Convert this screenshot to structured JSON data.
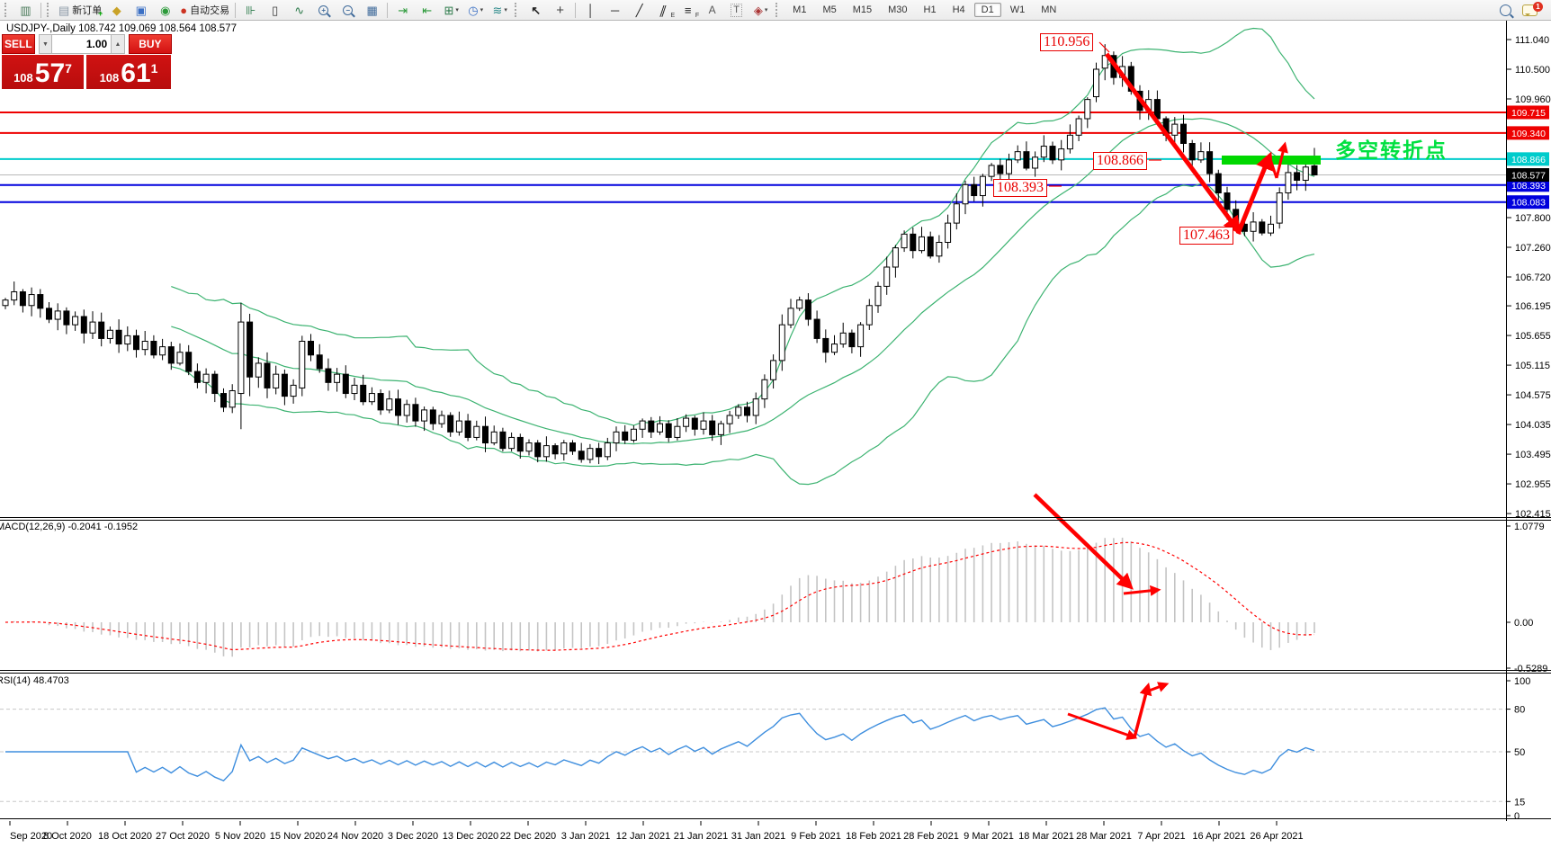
{
  "header": {
    "symbol_line": "USDJPY-,Daily 108.742 109.069 108.564 108.577"
  },
  "toolbar": {
    "new_order": "新订单",
    "autotrading": "自动交易",
    "timeframes": [
      "M1",
      "M5",
      "M15",
      "M30",
      "H1",
      "H4",
      "D1",
      "W1",
      "MN"
    ],
    "active_timeframe": "D1",
    "chat_badge": "1"
  },
  "trade": {
    "sell": "SELL",
    "buy": "BUY",
    "volume": "1.00",
    "sell_prefix": "108",
    "sell_big": "57",
    "sell_sup": "7",
    "buy_prefix": "108",
    "buy_big": "61",
    "buy_sup": "1"
  },
  "panels": {
    "macd_label": "MACD(12,26,9) -0.2041 -0.1952",
    "rsi_label": "RSI(14) 48.4703"
  },
  "annotations": {
    "peak": "110.956",
    "mid": "108.866",
    "low": "108.393",
    "trough": "107.463",
    "pivot": "多空转折点",
    "arrow_color": "#FF0000",
    "pivot_bar_color": "#00D800",
    "pivot_text_color": "#00E040"
  },
  "levels": [
    {
      "label": "109.715",
      "price": 109.715,
      "line": "#EE0000",
      "tag": "#EE0000",
      "lw": 2
    },
    {
      "label": "109.340",
      "price": 109.34,
      "line": "#EE0000",
      "tag": "#EE0000",
      "lw": 2
    },
    {
      "label": "108.866",
      "price": 108.866,
      "line": "#00CCCC",
      "tag": "#00CCCC",
      "lw": 2
    },
    {
      "label": "108.577",
      "price": 108.577,
      "line": "#B8B8B8",
      "tag": "#000000",
      "lw": 1
    },
    {
      "label": "108.393",
      "price": 108.393,
      "line": "#0000DD",
      "tag": "#0000DD",
      "lw": 2
    },
    {
      "label": "108.083",
      "price": 108.083,
      "line": "#0000DD",
      "tag": "#0000DD",
      "lw": 2
    }
  ],
  "axes": {
    "price_ticks": [
      {
        "label": "111.040",
        "value": 111.04
      },
      {
        "label": "110.500",
        "value": 110.5
      },
      {
        "label": "109.960",
        "value": 109.96
      },
      {
        "label": "107.800",
        "value": 107.8
      },
      {
        "label": "107.260",
        "value": 107.26
      },
      {
        "label": "106.720",
        "value": 106.72
      },
      {
        "label": "106.195",
        "value": 106.195
      },
      {
        "label": "105.655",
        "value": 105.655
      },
      {
        "label": "105.115",
        "value": 105.115
      },
      {
        "label": "104.575",
        "value": 104.575
      },
      {
        "label": "104.035",
        "value": 104.035
      },
      {
        "label": "103.495",
        "value": 103.495
      },
      {
        "label": "102.955",
        "value": 102.955
      },
      {
        "label": "102.415",
        "value": 102.415
      }
    ],
    "macd_ticks": [
      {
        "label": "1.0779",
        "value": 1.0779
      },
      {
        "label": "0.00",
        "value": 0
      },
      {
        "label": "-0.5289",
        "value": -0.5289
      }
    ],
    "rsi_ticks": [
      {
        "label": "100",
        "value": 100
      },
      {
        "label": "80",
        "value": 80
      },
      {
        "label": "50",
        "value": 50
      },
      {
        "label": "15",
        "value": 15
      },
      {
        "label": "0",
        "value": 0
      }
    ],
    "rsi_levels": [
      80,
      50,
      15
    ],
    "dates": [
      "Sep 2020",
      "8 Oct 2020",
      "18 Oct 2020",
      "27 Oct 2020",
      "5 Nov 2020",
      "15 Nov 2020",
      "24 Nov 2020",
      "3 Dec 2020",
      "13 Dec 2020",
      "22 Dec 2020",
      "3 Jan 2021",
      "12 Jan 2021",
      "21 Jan 2021",
      "31 Jan 2021",
      "9 Feb 2021",
      "18 Feb 2021",
      "28 Feb 2021",
      "9 Mar 2021",
      "18 Mar 2021",
      "28 Mar 2021",
      "7 Apr 2021",
      "16 Apr 2021",
      "26 Apr 2021"
    ]
  },
  "chart_data": {
    "type": "candlestick",
    "symbol": "USDJPY-",
    "timeframe": "Daily",
    "current_bar": {
      "open": "108.742",
      "high": "109.069",
      "low": "108.564",
      "close": "108.577"
    },
    "bollinger": {
      "period": 20,
      "deviation": 2,
      "color": "#3CB371"
    },
    "macd": {
      "fast": 12,
      "slow": 26,
      "signal": 9,
      "main_value": -0.2041,
      "signal_value": -0.1952
    },
    "rsi": {
      "period": 14,
      "value": 48.4703,
      "color": "#3E8EDE"
    },
    "closes": [
      106.3,
      106.45,
      106.2,
      106.4,
      106.15,
      105.95,
      106.1,
      105.85,
      106.0,
      105.7,
      105.9,
      105.6,
      105.75,
      105.5,
      105.65,
      105.4,
      105.55,
      105.3,
      105.45,
      105.15,
      105.35,
      105.0,
      104.8,
      104.95,
      104.6,
      104.35,
      104.65,
      105.9,
      104.9,
      105.15,
      104.7,
      104.95,
      104.55,
      104.75,
      105.55,
      105.3,
      105.05,
      104.8,
      104.95,
      104.6,
      104.75,
      104.45,
      104.6,
      104.3,
      104.5,
      104.2,
      104.4,
      104.1,
      104.3,
      104.05,
      104.2,
      103.9,
      104.1,
      103.8,
      104.0,
      103.7,
      103.9,
      103.6,
      103.8,
      103.55,
      103.7,
      103.45,
      103.65,
      103.5,
      103.7,
      103.55,
      103.4,
      103.6,
      103.45,
      103.7,
      103.9,
      103.75,
      103.95,
      104.1,
      103.9,
      104.05,
      103.8,
      104.0,
      104.15,
      103.95,
      104.1,
      103.85,
      104.05,
      104.2,
      104.35,
      104.2,
      104.5,
      104.85,
      105.2,
      105.85,
      106.15,
      106.3,
      105.95,
      105.6,
      105.35,
      105.5,
      105.7,
      105.45,
      105.85,
      106.2,
      106.55,
      106.9,
      107.25,
      107.5,
      107.2,
      107.45,
      107.1,
      107.35,
      107.7,
      108.05,
      108.4,
      108.2,
      108.55,
      108.75,
      108.6,
      108.85,
      109.0,
      108.7,
      108.9,
      109.1,
      108.85,
      109.05,
      109.3,
      109.6,
      109.95,
      110.5,
      110.75,
      110.35,
      110.55,
      110.1,
      109.75,
      109.95,
      109.6,
      109.3,
      109.5,
      109.15,
      108.85,
      109.0,
      108.6,
      108.25,
      107.95,
      107.7,
      107.55,
      107.72,
      107.52,
      107.68,
      108.25,
      108.62,
      108.48,
      108.72,
      108.58
    ],
    "bar_overrides": {
      "27": [
        104.6,
        106.25,
        103.95,
        105.9
      ],
      "28": [
        105.9,
        106.05,
        104.55,
        104.9
      ],
      "34": [
        104.7,
        105.65,
        104.55,
        105.55
      ],
      "66": [
        103.55,
        103.7,
        103.34,
        103.4
      ],
      "125": [
        110.0,
        110.62,
        109.9,
        110.5
      ],
      "126": [
        110.52,
        110.956,
        110.3,
        110.75
      ],
      "142": [
        107.68,
        107.8,
        107.463,
        107.55
      ],
      "146": [
        107.7,
        108.35,
        107.6,
        108.25
      ],
      "150": [
        108.742,
        109.069,
        108.564,
        108.577
      ]
    }
  }
}
